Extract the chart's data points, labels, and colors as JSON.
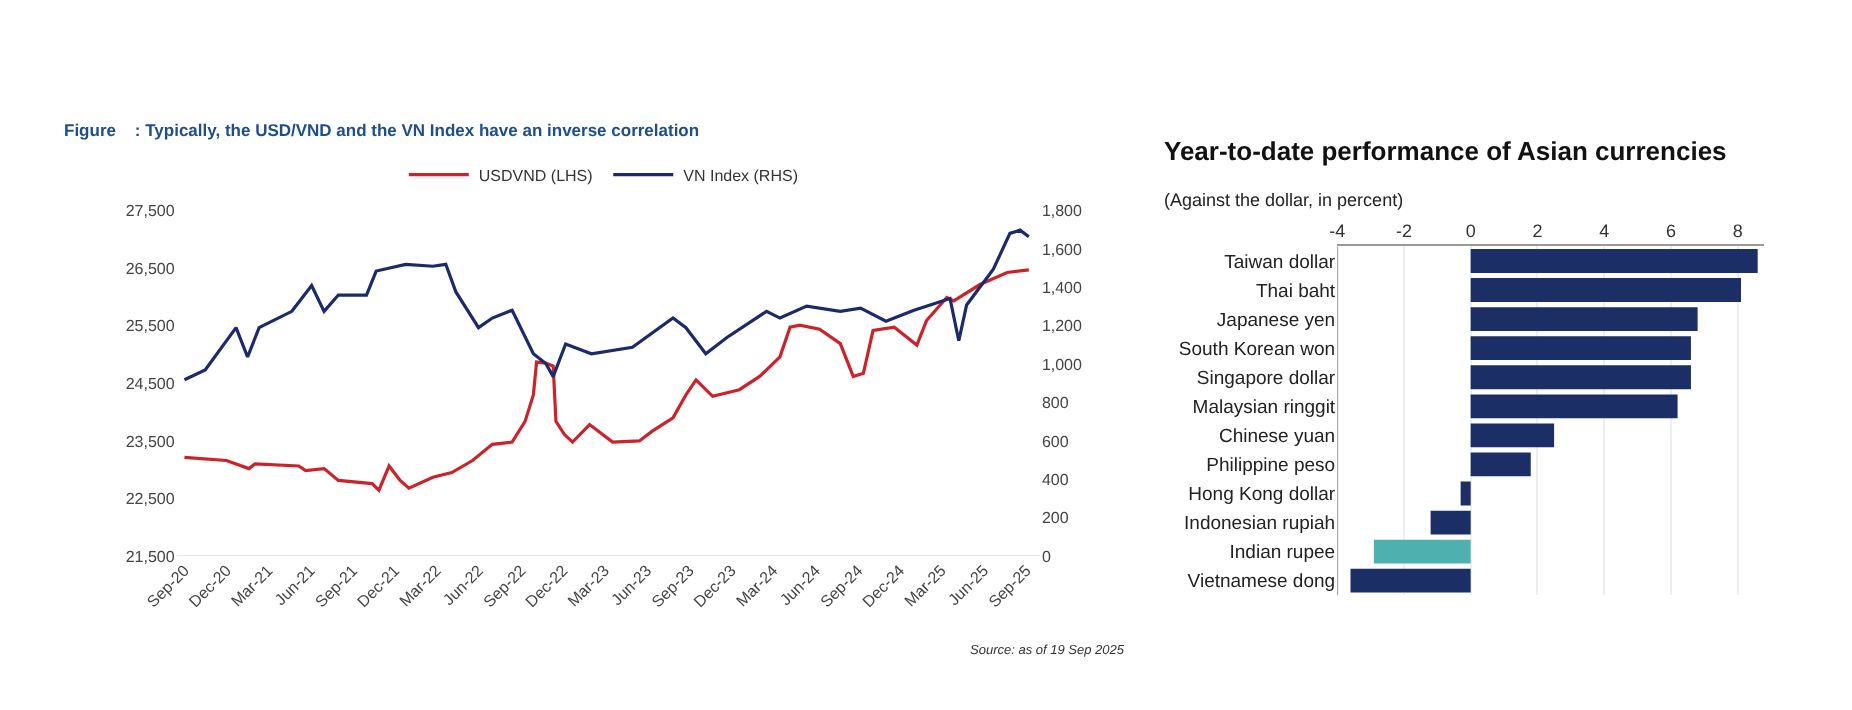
{
  "chart_data": [
    {
      "type": "line",
      "title": "Figure    : Typically, the USD/VND and the VN Index have an inverse correlation",
      "xlim": [
        "2020-08-15",
        "2025-10-01"
      ],
      "xticks": [
        {
          "value": "2020-09-01",
          "label": "Sep-20"
        },
        {
          "value": "2020-12-01",
          "label": "Dec-20"
        },
        {
          "value": "2021-03-01",
          "label": "Mar-21"
        },
        {
          "value": "2021-06-01",
          "label": "Jun-21"
        },
        {
          "value": "2021-09-01",
          "label": "Sep-21"
        },
        {
          "value": "2021-12-01",
          "label": "Dec-21"
        },
        {
          "value": "2022-03-01",
          "label": "Mar-22"
        },
        {
          "value": "2022-06-01",
          "label": "Jun-22"
        },
        {
          "value": "2022-09-01",
          "label": "Sep-22"
        },
        {
          "value": "2022-12-01",
          "label": "Dec-22"
        },
        {
          "value": "2023-03-01",
          "label": "Mar-23"
        },
        {
          "value": "2023-06-01",
          "label": "Jun-23"
        },
        {
          "value": "2023-09-01",
          "label": "Sep-23"
        },
        {
          "value": "2023-12-01",
          "label": "Dec-23"
        },
        {
          "value": "2024-03-01",
          "label": "Mar-24"
        },
        {
          "value": "2024-06-01",
          "label": "Jun-24"
        },
        {
          "value": "2024-09-01",
          "label": "Sep-24"
        },
        {
          "value": "2024-12-01",
          "label": "Dec-24"
        },
        {
          "value": "2025-03-01",
          "label": "Mar-25"
        },
        {
          "value": "2025-06-01",
          "label": "Jun-25"
        },
        {
          "value": "2025-09-01",
          "label": "Sep-25"
        }
      ],
      "ylim": [
        21500,
        27500
      ],
      "yticks": [
        {
          "value": 21500,
          "label": "21,500"
        },
        {
          "value": 22500,
          "label": "22,500"
        },
        {
          "value": 23500,
          "label": "23,500"
        },
        {
          "value": 24500,
          "label": "24,500"
        },
        {
          "value": 25500,
          "label": "25,500"
        },
        {
          "value": 26500,
          "label": "26,500"
        },
        {
          "value": 27500,
          "label": "27,500"
        }
      ],
      "y2lim": [
        0,
        1800
      ],
      "y2ticks": [
        0,
        200,
        400,
        600,
        800,
        {
          "value": 1000,
          "label": "1,000"
        },
        {
          "value": 1200,
          "label": "1,200"
        },
        {
          "value": 1400,
          "label": "1,400"
        },
        {
          "value": 1600,
          "label": "1,600"
        },
        {
          "value": 1800,
          "label": "1,800"
        }
      ],
      "legend": "top",
      "grid": false,
      "series": [
        {
          "name": "USDVND (LHS)",
          "color": "#cc2229",
          "x": [
            "2020-09-01",
            "2020-12-01",
            "2021-01-19",
            "2021-02-01",
            "2021-05-07",
            "2021-05-22",
            "2021-07-01",
            "2021-08-01",
            "2021-10-13",
            "2021-10-28",
            "2021-11-19",
            "2021-12-13",
            "2022-01-01",
            "2022-02-22",
            "2022-04-04",
            "2022-05-19",
            "2022-07-01",
            "2022-08-13",
            "2022-09-10",
            "2022-09-28",
            "2022-10-05",
            "2022-10-25",
            "2022-11-10",
            "2022-11-16",
            "2022-12-04",
            "2022-12-22",
            "2023-01-28",
            "2023-03-19",
            "2023-05-16",
            "2023-06-13",
            "2023-07-28",
            "2023-08-25",
            "2023-09-16",
            "2023-10-22",
            "2023-12-19",
            "2024-02-01",
            "2024-03-16",
            "2024-04-07",
            "2024-04-28",
            "2024-06-10",
            "2024-07-25",
            "2024-08-22",
            "2024-09-13",
            "2024-10-04",
            "2024-11-19",
            "2025-01-07",
            "2025-01-28",
            "2025-03-13",
            "2025-03-28",
            "2025-05-25",
            "2025-07-22",
            "2025-09-07"
          ],
          "values": [
            23215,
            23160,
            23020,
            23100,
            23065,
            22985,
            23020,
            22815,
            22760,
            22645,
            23065,
            22815,
            22680,
            22870,
            22950,
            23160,
            23440,
            23480,
            23840,
            24300,
            24870,
            24850,
            24800,
            23840,
            23615,
            23480,
            23785,
            23480,
            23500,
            23670,
            23900,
            24300,
            24560,
            24275,
            24390,
            24620,
            24960,
            25475,
            25510,
            25440,
            25190,
            24620,
            24675,
            25420,
            25475,
            25165,
            25590,
            25990,
            25930,
            26220,
            26425,
            26470
          ]
        },
        {
          "name": "VN Index (RHS)",
          "color": "#1b2a6b",
          "axis": "y2",
          "x": [
            "2020-09-01",
            "2020-10-16",
            "2020-12-22",
            "2021-01-16",
            "2021-02-10",
            "2021-04-22",
            "2021-06-04",
            "2021-07-01",
            "2021-08-01",
            "2021-10-01",
            "2021-10-22",
            "2021-12-25",
            "2022-02-22",
            "2022-03-22",
            "2022-04-13",
            "2022-06-01",
            "2022-07-01",
            "2022-08-13",
            "2022-09-28",
            "2022-10-25",
            "2022-11-10",
            "2022-12-07",
            "2023-02-01",
            "2023-05-01",
            "2023-07-28",
            "2023-08-25",
            "2023-10-07",
            "2023-11-22",
            "2024-02-16",
            "2024-03-16",
            "2024-05-13",
            "2024-07-25",
            "2024-09-07",
            "2024-11-01",
            "2025-01-01",
            "2025-03-20",
            "2025-04-08",
            "2025-04-25",
            "2025-06-22",
            "2025-07-28",
            "2025-08-19",
            "2025-09-07"
          ],
          "values": [
            919,
            970,
            1190,
            1037,
            1190,
            1275,
            1410,
            1275,
            1360,
            1360,
            1485,
            1520,
            1510,
            1520,
            1376,
            1190,
            1240,
            1281,
            1054,
            1003,
            935,
            1105,
            1054,
            1088,
            1240,
            1190,
            1054,
            1139,
            1275,
            1240,
            1302,
            1275,
            1292,
            1224,
            1281,
            1342,
            1122,
            1308,
            1495,
            1681,
            1698,
            1664
          ]
        }
      ],
      "annotations": [
        "Source: as of 19 Sep 2025"
      ]
    },
    {
      "type": "bar",
      "orientation": "horizontal",
      "title": "Year-to-date performance of Asian currencies",
      "subtitle": "(Against the dollar, in percent)",
      "categories": [
        "Taiwan dollar",
        "Thai baht",
        "Japanese yen",
        "South Korean won",
        "Singapore dollar",
        "Malaysian ringgit",
        "Chinese yuan",
        "Philippine peso",
        "Hong Kong dollar",
        "Indonesian rupiah",
        "Indian rupee",
        "Vietnamese dong"
      ],
      "values": [
        8.6,
        8.1,
        6.8,
        6.6,
        6.6,
        6.2,
        2.5,
        1.8,
        -0.3,
        -1.2,
        -2.9,
        -3.6
      ],
      "colors": [
        "#1b2f66",
        "#1b2f66",
        "#1b2f66",
        "#1b2f66",
        "#1b2f66",
        "#1b2f66",
        "#1b2f66",
        "#1b2f66",
        "#1b2f66",
        "#1b2f66",
        "#4fb0b0",
        "#1b2f66"
      ],
      "xlim": [
        -4,
        8.8
      ],
      "xticks": [
        -4,
        -2,
        0,
        2,
        4,
        6,
        8
      ],
      "grid": "x"
    }
  ]
}
